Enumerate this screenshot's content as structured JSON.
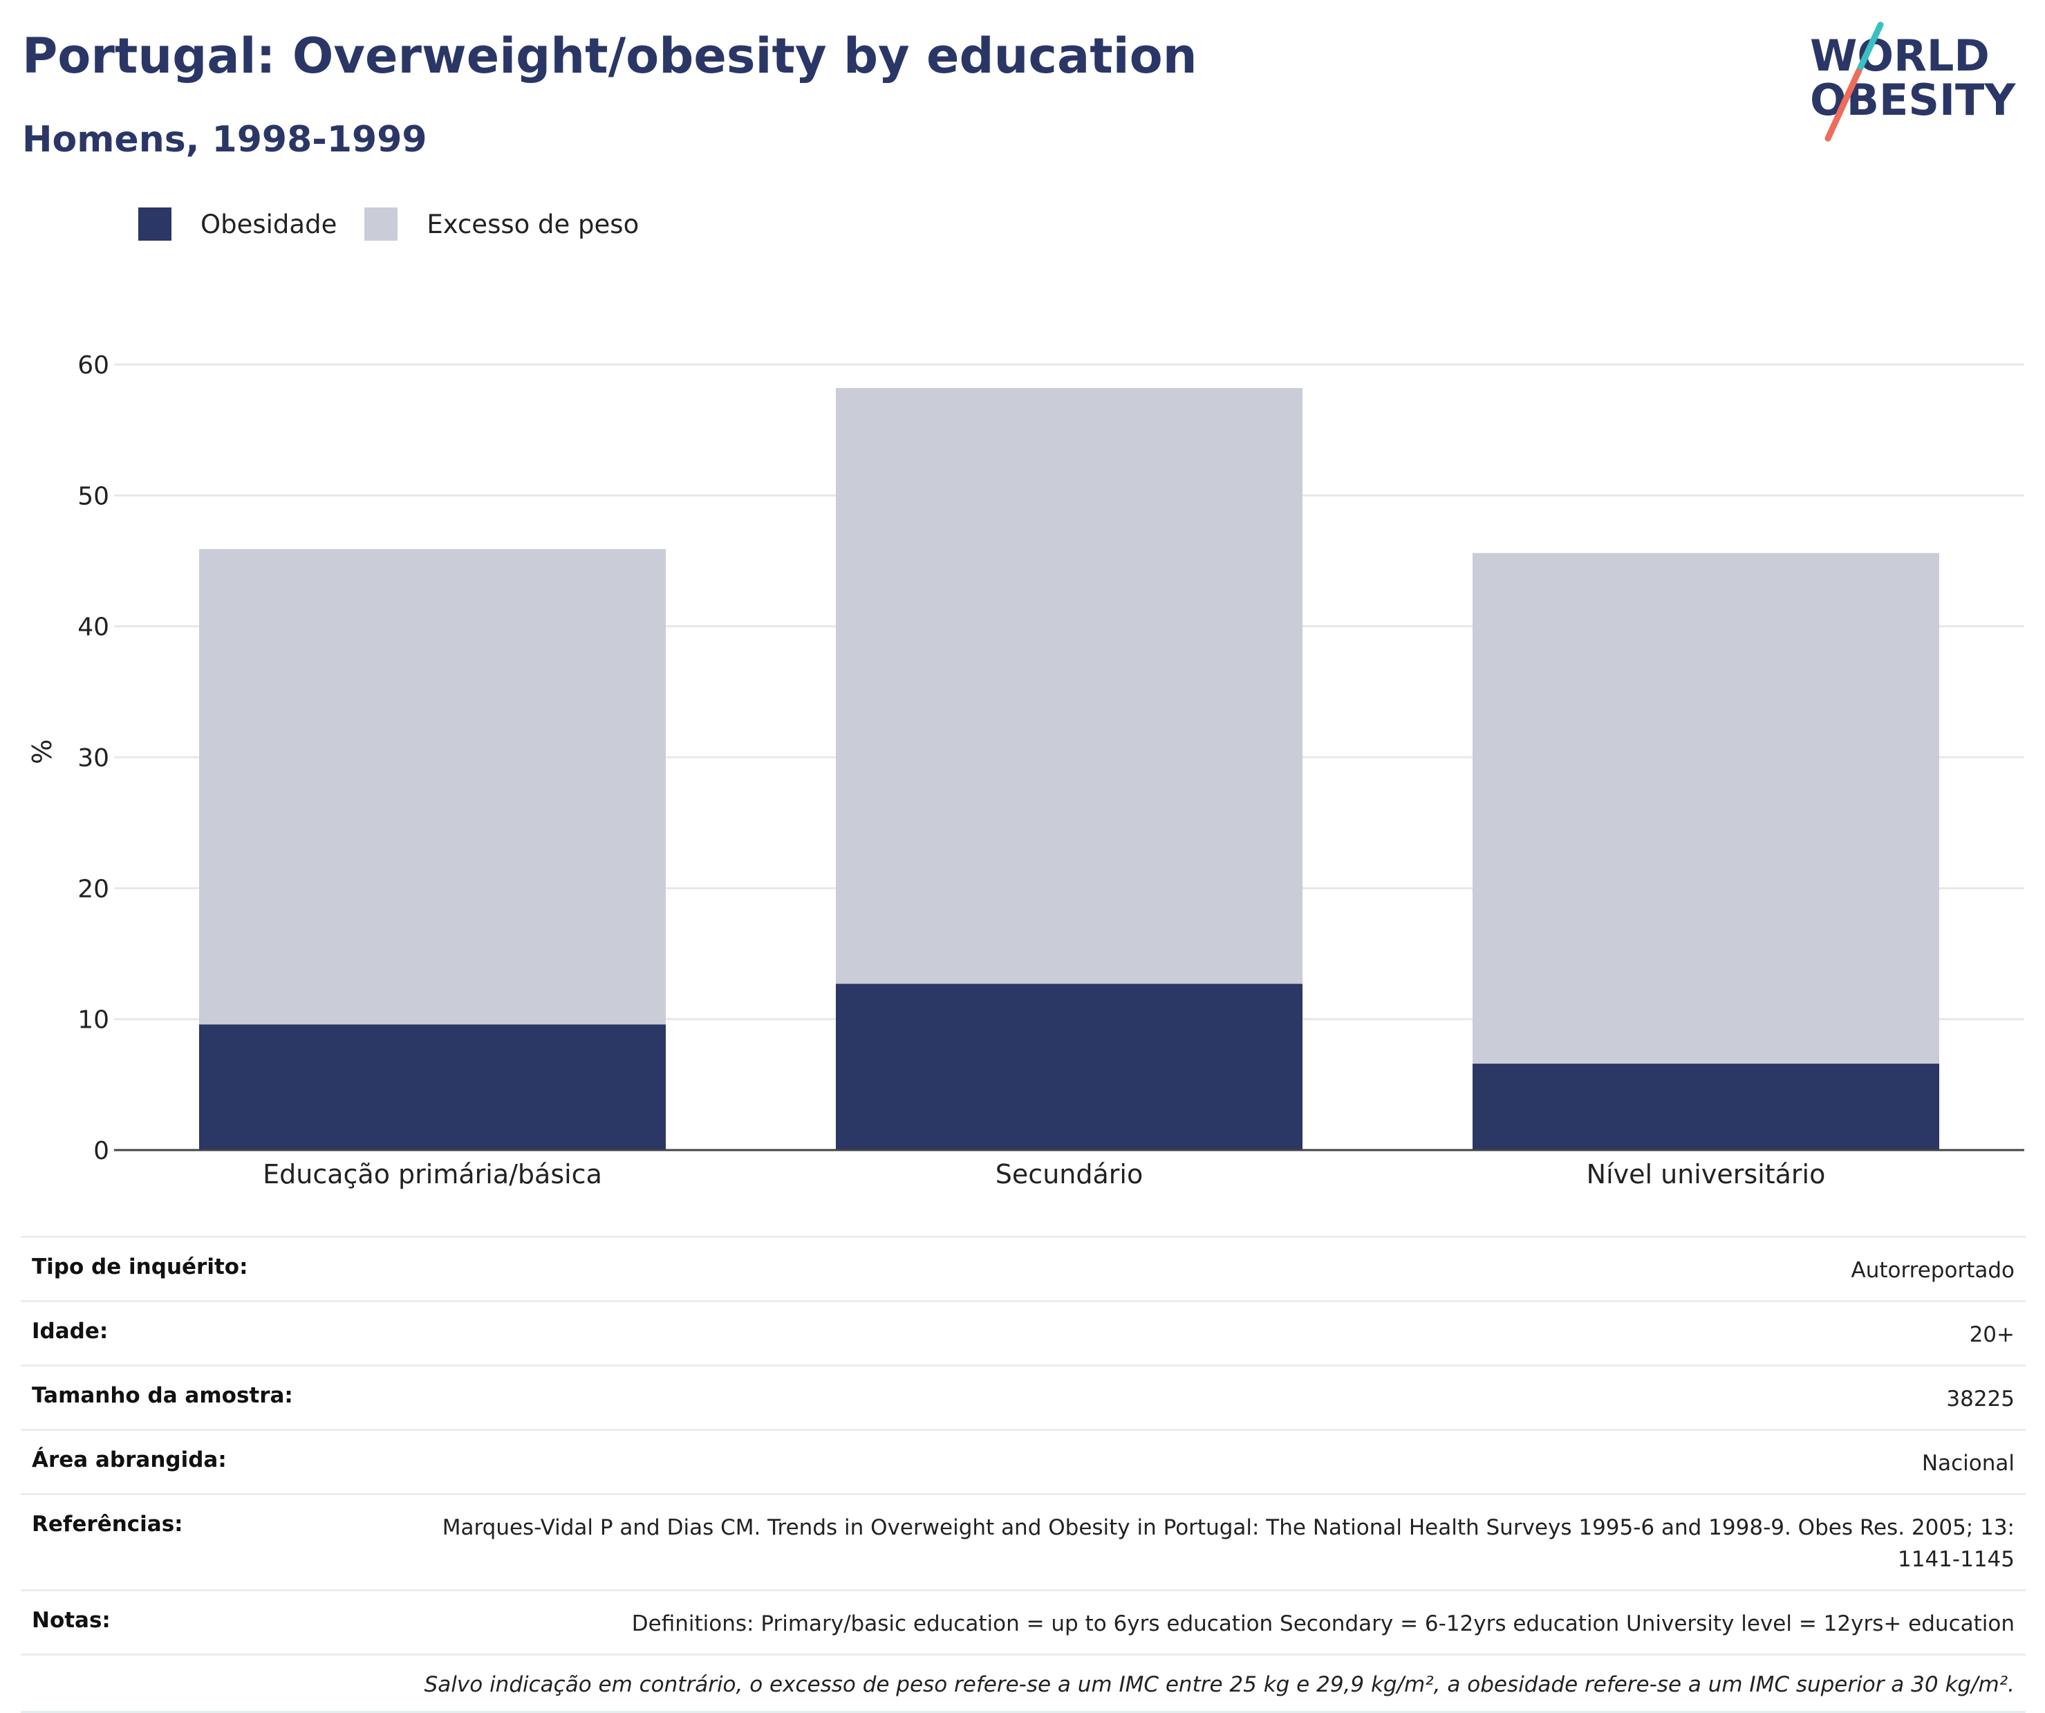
{
  "header": {
    "title": "Portugal: Overweight/obesity by education",
    "subtitle": "Homens, 1998-1999",
    "logo_line1": "WORLD",
    "logo_line2": "OBESITY"
  },
  "legend": {
    "items": [
      {
        "label": "Obesidade",
        "color": "#2b3764"
      },
      {
        "label": "Excesso de peso",
        "color": "#cacdd8"
      }
    ]
  },
  "chart_data": {
    "type": "bar",
    "stacked": true,
    "title": "Portugal: Overweight/obesity by education",
    "subtitle": "Homens, 1998-1999",
    "categories": [
      "Educação primária/básica",
      "Secundário",
      "Nível universitário"
    ],
    "series": [
      {
        "name": "Obesidade",
        "values": [
          9.6,
          12.7,
          6.6
        ],
        "color": "#2b3764"
      },
      {
        "name": "Excesso de peso",
        "values": [
          36.3,
          45.5,
          39.0
        ],
        "color": "#cacdd8"
      }
    ],
    "ylabel": "%",
    "xlabel": "",
    "ylim": [
      0,
      60
    ],
    "yticks": [
      0,
      10,
      20,
      30,
      40,
      50,
      60
    ],
    "grid": true,
    "legend_position": "top-left"
  },
  "info": {
    "rows": [
      {
        "key": "Tipo de inquérito:",
        "value": "Autorreportado"
      },
      {
        "key": "Idade:",
        "value": "20+"
      },
      {
        "key": "Tamanho da amostra:",
        "value": "38225"
      },
      {
        "key": "Área abrangida:",
        "value": "Nacional"
      },
      {
        "key": "Referências:",
        "value": "Marques-Vidal P and Dias CM. Trends in Overweight and Obesity in Portugal: The National Health Surveys 1995-6 and 1998-9. Obes Res. 2005; 13: 1141-1145"
      },
      {
        "key": "Notas:",
        "value": "Definitions: Primary/basic education = up to 6yrs education Secondary = 6-12yrs education University level = 12yrs+ education"
      }
    ],
    "footnote": "Salvo indicação em contrário, o excesso de peso refere-se a um IMC entre 25 kg e 29,9 kg/m², a obesidade refere-se a um IMC superior a 30 kg/m²."
  }
}
